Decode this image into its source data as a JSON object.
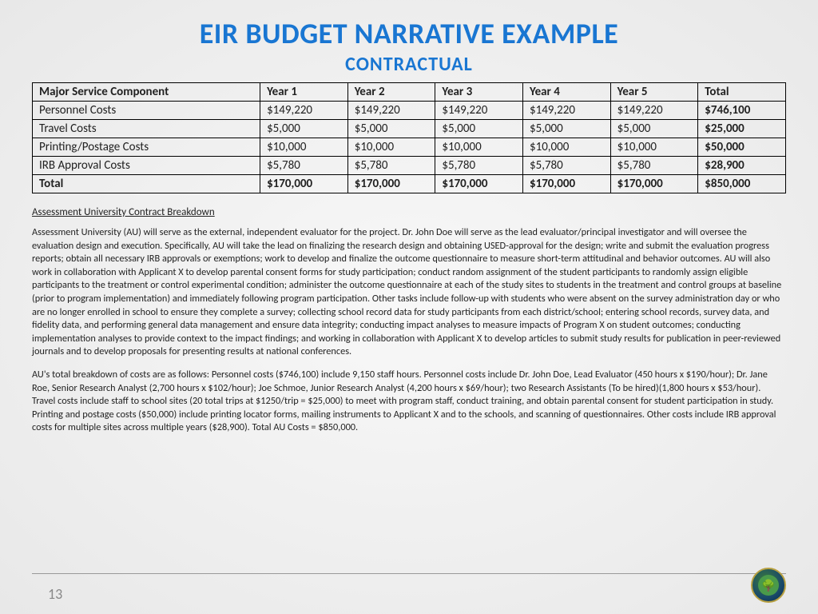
{
  "title": "EIR BUDGET NARRATIVE EXAMPLE",
  "subtitle": "CONTRACTUAL",
  "table": {
    "headers": [
      "Major Service Component",
      "Year 1",
      "Year 2",
      "Year 3",
      "Year 4",
      "Year 5",
      "Total"
    ],
    "rows": [
      {
        "label": "Personnel Costs",
        "y1": "$149,220",
        "y2": "$149,220",
        "y3": "$149,220",
        "y4": "$149,220",
        "y5": "$149,220",
        "total": "$746,100"
      },
      {
        "label": "Travel Costs",
        "y1": "$5,000",
        "y2": "$5,000",
        "y3": "$5,000",
        "y4": "$5,000",
        "y5": "$5,000",
        "total": "$25,000"
      },
      {
        "label": "Printing/Postage Costs",
        "y1": "$10,000",
        "y2": "$10,000",
        "y3": "$10,000",
        "y4": "$10,000",
        "y5": "$10,000",
        "total": "$50,000"
      },
      {
        "label": "IRB Approval Costs",
        "y1": "$5,780",
        "y2": "$5,780",
        "y3": "$5,780",
        "y4": "$5,780",
        "y5": "$5,780",
        "total": "$28,900"
      },
      {
        "label": "Total",
        "y1": "$170,000",
        "y2": "$170,000",
        "y3": "$170,000",
        "y4": "$170,000",
        "y5": "$170,000",
        "total": "$850,000"
      }
    ]
  },
  "section_heading": "Assessment University Contract Breakdown",
  "para1": "Assessment University (AU) will serve as the external, independent evaluator for the project. Dr. John Doe will serve as the lead evaluator/principal investigator and will oversee the evaluation design and execution. Specifically, AU will take the lead on finalizing the research design and obtaining USED-approval for the design; write and submit the evaluation progress reports; obtain all necessary IRB approvals or exemptions; work to develop and finalize the outcome questionnaire to measure short-term attitudinal and behavior outcomes. AU will also  work in collaboration with Applicant X to develop parental consent forms for study participation; conduct random assignment of the student participants to randomly assign eligible participants to the treatment or control experimental condition; administer the outcome questionnaire   at each of the study sites to students in the treatment and control groups at baseline (prior to program implementation) and immediately following program participation. Other tasks include follow-up with students who were absent on the survey administration day or who are no longer enrolled in school to ensure they complete a survey; collecting school record data for study participants from each district/school;  entering school records, survey data, and fidelity data, and performing general data management and ensure data integrity; conducting impact analyses to measure impacts of Program X on student outcomes; conducting implementation analyses to provide context to the impact findings; and working in collaboration with Applicant X to develop articles to submit study results for publication in peer-reviewed journals and to develop proposals for presenting results at national conferences.",
  "para2": "AU's total breakdown of costs are as follows: Personnel costs ($746,100) include 9,150 staff hours. Personnel costs include Dr. John Doe, Lead Evaluator (450 hours x $190/hour); Dr. Jane Roe, Senior Research Analyst (2,700 hours x $102/hour); Joe Schmoe, Junior Research Analyst (4,200 hours x $69/hour); two Research Assistants (To be hired)(1,800 hours x $53/hour). Travel costs include staff to school sites (20 total trips at $1250/trip = $25,000) to meet with program staff, conduct training, and obtain parental consent for student participation in study. Printing and postage costs ($50,000) include printing locator forms, mailing instruments to Applicant X and to the schools, and scanning of questionnaires. Other costs include IRB approval costs for multiple sites across multiple years ($28,900). Total AU Costs = $850,000.",
  "page_number": "13",
  "colors": {
    "title_blue": "#1976d2",
    "text": "#222222",
    "bg_light": "#f8f8f8",
    "bg_dark": "#e8e8e8",
    "border": "#000000"
  }
}
